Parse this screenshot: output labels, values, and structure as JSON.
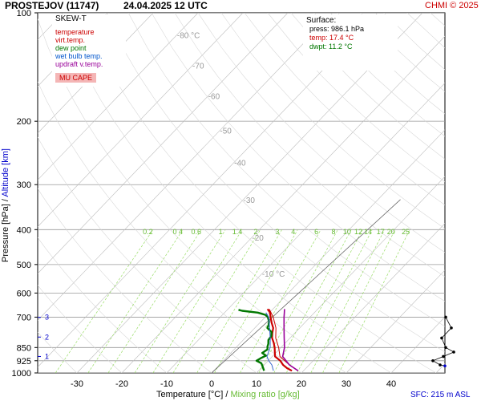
{
  "header": {
    "station": "PROSTEJOV (11747)",
    "datetime": "24.04.2025 12 UTC",
    "credit": "CHMI © 2025",
    "sfc_altitude": "SFC: 215 m ASL"
  },
  "legend": {
    "title": "SKEW-T",
    "items": [
      {
        "label": "temperature",
        "color": "#cc0000"
      },
      {
        "label": "virt.temp.",
        "color": "#cc0000"
      },
      {
        "label": "dew point",
        "color": "#007700"
      },
      {
        "label": "wet bulb temp.",
        "color": "#0055cc"
      },
      {
        "label": "updraft v.temp.",
        "color": "#990099"
      }
    ],
    "cape_button": "MU CAPE"
  },
  "surface": {
    "title": "Surface:",
    "press": "press: 986.1 hPa",
    "temp": "temp: 17.4 °C",
    "dwpt": "dwpt: 11.2 °C"
  },
  "axes": {
    "ylabel_pressure": "Pressure [hPa]",
    "ylabel_sep": "/",
    "ylabel_altitude": "Altitude [km]",
    "xlabel_temp": "Temperature [°C]",
    "xlabel_sep": "/",
    "xlabel_mixing": "Mixing ratio [g/kg]"
  },
  "colors": {
    "temperature": "#cc0000",
    "dewpoint": "#007700",
    "wetbulb": "#3366cc",
    "updraft": "#990099",
    "isobar": "#999999",
    "isotherm": "#bbbbbb",
    "mixing": "#99dd66",
    "mixing_text": "#66bb33",
    "altitude": "#0000cc",
    "wind": "#000000"
  },
  "chart_data": {
    "type": "line",
    "title": "PROSTEJOV (11747)",
    "xlabel": "Temperature [°C]",
    "ylabel": "Pressure [hPa]",
    "y_scale": "log",
    "xlim": [
      -35,
      43
    ],
    "ylim": [
      1000,
      100
    ],
    "x_ticks": [
      -30,
      -20,
      -10,
      0,
      10,
      20,
      30,
      40
    ],
    "x_tick_labels": [
      "-30",
      "-20",
      "-10",
      "0",
      "10",
      "20",
      "30",
      "40"
    ],
    "pressure_ticks": [
      100,
      200,
      300,
      400,
      500,
      600,
      700,
      850,
      925,
      1000
    ],
    "pressure_tick_labels": [
      "100",
      "200",
      "300",
      "400",
      "500",
      "600",
      "700",
      "850",
      "925",
      "1000"
    ],
    "isotherm_labels": [
      {
        "label": "-80 °C",
        "temp": -80,
        "p": 115
      },
      {
        "label": "-70",
        "temp": -70,
        "p": 140
      },
      {
        "label": "-60",
        "temp": -60,
        "p": 170
      },
      {
        "label": "-50",
        "temp": -50,
        "p": 212
      },
      {
        "label": "-40",
        "temp": -40,
        "p": 260
      },
      {
        "label": "-30",
        "temp": -30,
        "p": 330
      },
      {
        "label": "-20",
        "temp": -20,
        "p": 420
      },
      {
        "label": "-10 °C",
        "temp": -10,
        "p": 530
      }
    ],
    "mixing_ratios": [
      0.2,
      0.4,
      0.6,
      1,
      1.4,
      2,
      3,
      4,
      6,
      8,
      10,
      12,
      14,
      17,
      20,
      25
    ],
    "mixing_labels": [
      "0.2",
      "0 4",
      "0.6",
      "1",
      "1.4",
      "2",
      "3",
      "4",
      "6",
      "8",
      "10",
      "12",
      "14",
      "17",
      "20",
      "25"
    ],
    "altitude_ticks": [
      {
        "label": "1",
        "km": 1,
        "p": 900
      },
      {
        "label": "2",
        "km": 2,
        "p": 795
      },
      {
        "label": "3",
        "km": 3,
        "p": 701
      }
    ],
    "reference_line": [
      {
        "t": 0,
        "p": 1000
      },
      {
        "t": 5,
        "p": 330
      }
    ],
    "series": [
      {
        "name": "temperature",
        "points": [
          {
            "p": 986,
            "t": 17.4
          },
          {
            "p": 970,
            "t": 15.8
          },
          {
            "p": 950,
            "t": 14.2
          },
          {
            "p": 925,
            "t": 12.7
          },
          {
            "p": 900,
            "t": 10.6
          },
          {
            "p": 875,
            "t": 9.6
          },
          {
            "p": 850,
            "t": 8.6
          },
          {
            "p": 825,
            "t": 7.4
          },
          {
            "p": 800,
            "t": 6.0
          },
          {
            "p": 775,
            "t": 5.0
          },
          {
            "p": 750,
            "t": 4.1
          },
          {
            "p": 725,
            "t": 2.6
          },
          {
            "p": 700,
            "t": 1.2
          },
          {
            "p": 680,
            "t": 0.1
          },
          {
            "p": 665,
            "t": -1.2
          }
        ]
      },
      {
        "name": "virt.temp.",
        "points": [
          {
            "p": 986,
            "t": 18.8
          },
          {
            "p": 950,
            "t": 15.6
          },
          {
            "p": 900,
            "t": 11.7
          },
          {
            "p": 850,
            "t": 9.5
          },
          {
            "p": 800,
            "t": 6.8
          },
          {
            "p": 750,
            "t": 4.7
          },
          {
            "p": 700,
            "t": 1.8
          },
          {
            "p": 665,
            "t": -0.8
          }
        ]
      },
      {
        "name": "dew point",
        "points": [
          {
            "p": 986,
            "t": 11.2
          },
          {
            "p": 960,
            "t": 10.0
          },
          {
            "p": 940,
            "t": 9.0
          },
          {
            "p": 925,
            "t": 7.4
          },
          {
            "p": 910,
            "t": 7.8
          },
          {
            "p": 895,
            "t": 8.4
          },
          {
            "p": 880,
            "t": 7.0
          },
          {
            "p": 860,
            "t": 7.4
          },
          {
            "p": 845,
            "t": 6.8
          },
          {
            "p": 830,
            "t": 6.4
          },
          {
            "p": 810,
            "t": 5.6
          },
          {
            "p": 790,
            "t": 5.4
          },
          {
            "p": 770,
            "t": 4.6
          },
          {
            "p": 750,
            "t": 2.8
          },
          {
            "p": 735,
            "t": 2.4
          },
          {
            "p": 720,
            "t": 1.8
          },
          {
            "p": 700,
            "t": 0.6
          },
          {
            "p": 690,
            "t": -0.4
          },
          {
            "p": 680,
            "t": -2.6
          },
          {
            "p": 672,
            "t": -6.5
          },
          {
            "p": 668,
            "t": -7.5
          }
        ]
      },
      {
        "name": "wet bulb temp.",
        "points": [
          {
            "p": 986,
            "t": 13.3
          },
          {
            "p": 950,
            "t": 11.7
          },
          {
            "p": 925,
            "t": 10.1
          },
          {
            "p": 900,
            "t": 8.8
          },
          {
            "p": 850,
            "t": 7.6
          },
          {
            "p": 800,
            "t": 5.6
          },
          {
            "p": 750,
            "t": 3.3
          },
          {
            "p": 700,
            "t": 0.8
          },
          {
            "p": 680,
            "t": -0.8
          }
        ]
      },
      {
        "name": "updraft v.temp.",
        "points": [
          {
            "p": 986,
            "t": 18.8
          },
          {
            "p": 950,
            "t": 15.6
          },
          {
            "p": 900,
            "t": 12.3
          },
          {
            "p": 850,
            "t": 10.8
          },
          {
            "p": 800,
            "t": 8.7
          },
          {
            "p": 750,
            "t": 6.5
          },
          {
            "p": 700,
            "t": 4.2
          },
          {
            "p": 680,
            "t": 3.3
          },
          {
            "p": 665,
            "t": 2.6
          }
        ]
      }
    ],
    "wind_profile_pressures": [
      986,
      950,
      925,
      900,
      875,
      850,
      800,
      750,
      700
    ]
  }
}
